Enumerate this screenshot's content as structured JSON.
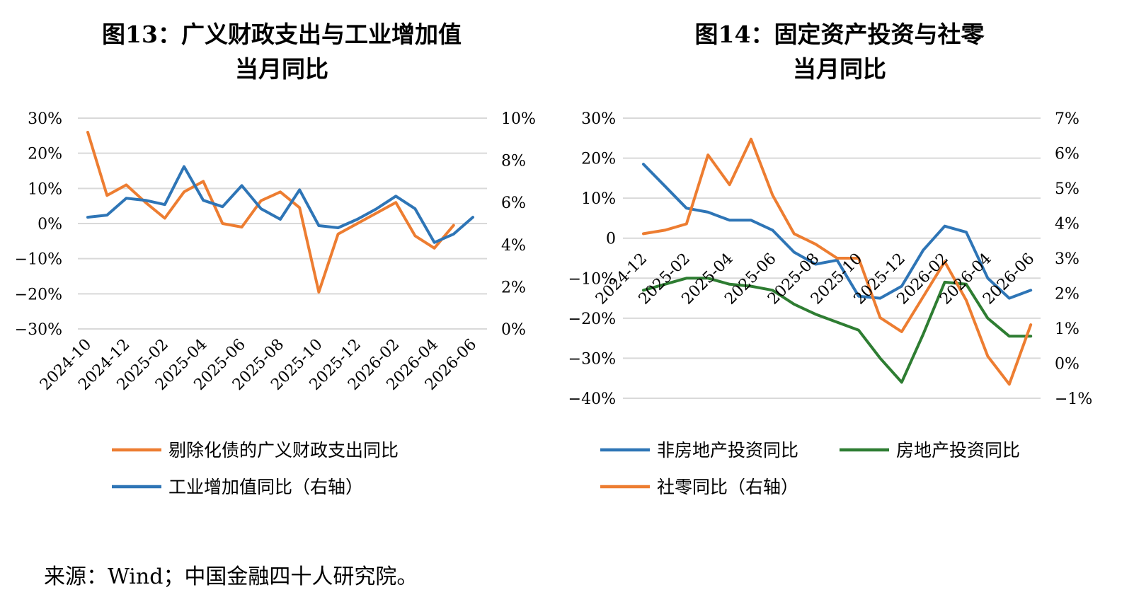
{
  "source_note": "来源：Wind；中国金融四十人研究院。",
  "colors": {
    "orange": "#ED7D31",
    "blue": "#2E75B6",
    "green": "#2E7D32",
    "grid": "#D9D9D9"
  },
  "chart_data": [
    {
      "type": "line",
      "title_lines": [
        "图13：广义财政支出与工业增加值",
        "当月同比"
      ],
      "left_axis": {
        "ticks": [
          "30%",
          "20%",
          "10%",
          "0%",
          "−10%",
          "−20%",
          "−30%"
        ],
        "ylim": [
          -30,
          30
        ]
      },
      "right_axis": {
        "ticks": [
          "10%",
          "8%",
          "6%",
          "4%",
          "2%",
          "0%"
        ],
        "ylim": [
          0,
          10
        ]
      },
      "x_tick_labels": [
        "2024-10",
        "2024-12",
        "2025-02",
        "2025-04",
        "2025-06",
        "2025-08",
        "2025-10",
        "2025-12",
        "2026-02",
        "2026-04",
        "2026-06"
      ],
      "series": [
        {
          "name": "剔除化债的广义财政支出同比",
          "axis": "left",
          "color": "#ED7D31",
          "values": [
            26,
            8,
            11,
            6,
            1.5,
            9,
            12,
            0,
            -1,
            6.5,
            9,
            4.5,
            -19.5,
            -3,
            0,
            3,
            6,
            -3.5,
            -7,
            -0.5,
            null
          ]
        },
        {
          "name": "工业增加值同比（右轴）",
          "axis": "right",
          "color": "#2E75B6",
          "values": [
            5.3,
            5.4,
            6.2,
            6.1,
            5.9,
            7.7,
            6.1,
            5.8,
            6.8,
            5.7,
            5.2,
            6.6,
            4.9,
            4.8,
            5.2,
            5.7,
            6.3,
            5.7,
            4.1,
            4.5,
            5.3
          ]
        }
      ]
    },
    {
      "type": "line",
      "title_lines": [
        "图14：固定资产投资与社零",
        "当月同比"
      ],
      "left_axis": {
        "ticks": [
          "30%",
          "20%",
          "10%",
          "0",
          "−10%",
          "−20%",
          "−30%",
          "−40%"
        ],
        "ylim": [
          -40,
          30
        ]
      },
      "right_axis": {
        "ticks": [
          "7%",
          "6%",
          "5%",
          "4%",
          "3%",
          "2%",
          "1%",
          "0%",
          "−1%"
        ],
        "ylim": [
          -1,
          7
        ]
      },
      "x_tick_labels": [
        "2024-12",
        "2025-02",
        "2025-04",
        "2025-06",
        "2025-08",
        "2025-10",
        "2025-12",
        "2026-02",
        "2026-04",
        "2026-06"
      ],
      "series": [
        {
          "name": "非房地产投资同比",
          "axis": "left",
          "color": "#2E75B6",
          "values": [
            18.5,
            13,
            7.5,
            6.5,
            4.5,
            4.5,
            2,
            -3.5,
            -6.5,
            -5.5,
            -14.5,
            -15,
            -12,
            -3,
            3,
            1.5,
            -10,
            -15,
            -13
          ]
        },
        {
          "name": "房地产投资同比",
          "axis": "left",
          "color": "#2E7D32",
          "values": [
            -13,
            -11.5,
            -10,
            -10,
            -11.5,
            -12,
            -13,
            -16.5,
            -19,
            -21,
            -23,
            -30,
            -36,
            -24,
            -11,
            -11.5,
            -20,
            -24.5,
            -24.5
          ]
        },
        {
          "name": "社零同比（右轴）",
          "axis": "right",
          "color": "#ED7D31",
          "values": [
            3.7,
            3.8,
            3.98,
            5.95,
            5.1,
            6.4,
            4.8,
            3.7,
            3.4,
            3.0,
            3.0,
            1.3,
            0.9,
            1.9,
            2.9,
            1.8,
            0.2,
            -0.6,
            1.1
          ]
        }
      ]
    }
  ]
}
